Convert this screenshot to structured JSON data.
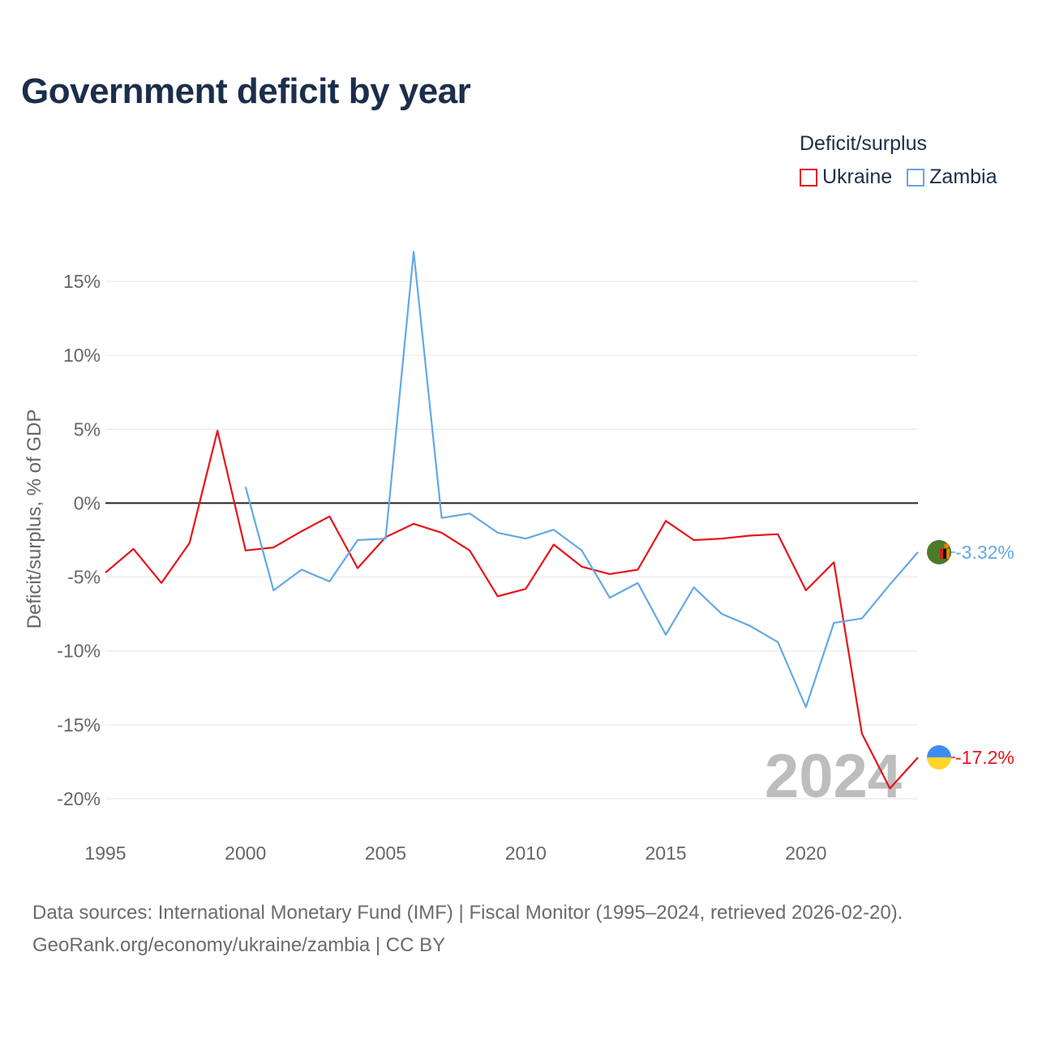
{
  "title": "Government deficit by year",
  "legend": {
    "title": "Deficit/surplus",
    "items": [
      {
        "name": "Ukraine",
        "color": "#e8141a"
      },
      {
        "name": "Zambia",
        "color": "#64a8e6"
      }
    ]
  },
  "footer": {
    "line1": "Data sources: International Monetary Fund (IMF) | Fiscal Monitor (1995–2024, retrieved 2026-02-20).",
    "line2": "GeoRank.org/economy/ukraine/zambia | CC BY"
  },
  "chart_data": {
    "type": "line",
    "title": "Government deficit by year",
    "xlabel": "",
    "ylabel": "Deficit/surplus, % of GDP",
    "xlim": [
      1995,
      2024
    ],
    "ylim": [
      -20,
      15
    ],
    "xticks": [
      1995,
      2000,
      2005,
      2010,
      2015,
      2020
    ],
    "yticks": [
      15,
      10,
      5,
      0,
      -5,
      -10,
      -15,
      -20
    ],
    "ytick_labels": [
      "15%",
      "10%",
      "5%",
      "0%",
      "-5%",
      "-10%",
      "-15%",
      "-20%"
    ],
    "watermark": "2024",
    "series": [
      {
        "name": "Ukraine",
        "color": "#e8141a",
        "end_label": "-17.2%",
        "x": [
          1995,
          1996,
          1997,
          1998,
          1999,
          2000,
          2001,
          2002,
          2003,
          2004,
          2005,
          2006,
          2007,
          2008,
          2009,
          2010,
          2011,
          2012,
          2013,
          2014,
          2015,
          2016,
          2017,
          2018,
          2019,
          2020,
          2021,
          2022,
          2023,
          2024
        ],
        "values": [
          -4.7,
          -3.1,
          -5.4,
          -2.7,
          4.9,
          -3.2,
          -3.0,
          -1.9,
          -0.9,
          -4.4,
          -2.3,
          -1.4,
          -2.0,
          -3.2,
          -6.3,
          -5.8,
          -2.8,
          -4.3,
          -4.8,
          -4.5,
          -1.2,
          -2.5,
          -2.4,
          -2.2,
          -2.1,
          -5.9,
          -4.0,
          -15.6,
          -19.3,
          -17.2
        ],
        "flag_colors": [
          "#3d8cf0",
          "#ffd629"
        ]
      },
      {
        "name": "Zambia",
        "color": "#64a8e6",
        "end_label": "-3.32%",
        "x": [
          2000,
          2001,
          2002,
          2003,
          2004,
          2005,
          2006,
          2007,
          2008,
          2009,
          2010,
          2011,
          2012,
          2013,
          2014,
          2015,
          2016,
          2017,
          2018,
          2019,
          2020,
          2021,
          2022,
          2023,
          2024
        ],
        "values": [
          1.1,
          -5.9,
          -4.5,
          -5.3,
          -2.5,
          -2.4,
          17.0,
          -1.0,
          -0.7,
          -2.0,
          -2.4,
          -1.8,
          -3.2,
          -6.4,
          -5.4,
          -8.9,
          -5.7,
          -7.5,
          -8.3,
          -9.4,
          -13.8,
          -8.1,
          -7.8,
          -5.5,
          -3.32
        ],
        "flag_colors": [
          "#4a7a2a",
          "#de2010",
          "#000000",
          "#ef7d00"
        ]
      }
    ]
  }
}
